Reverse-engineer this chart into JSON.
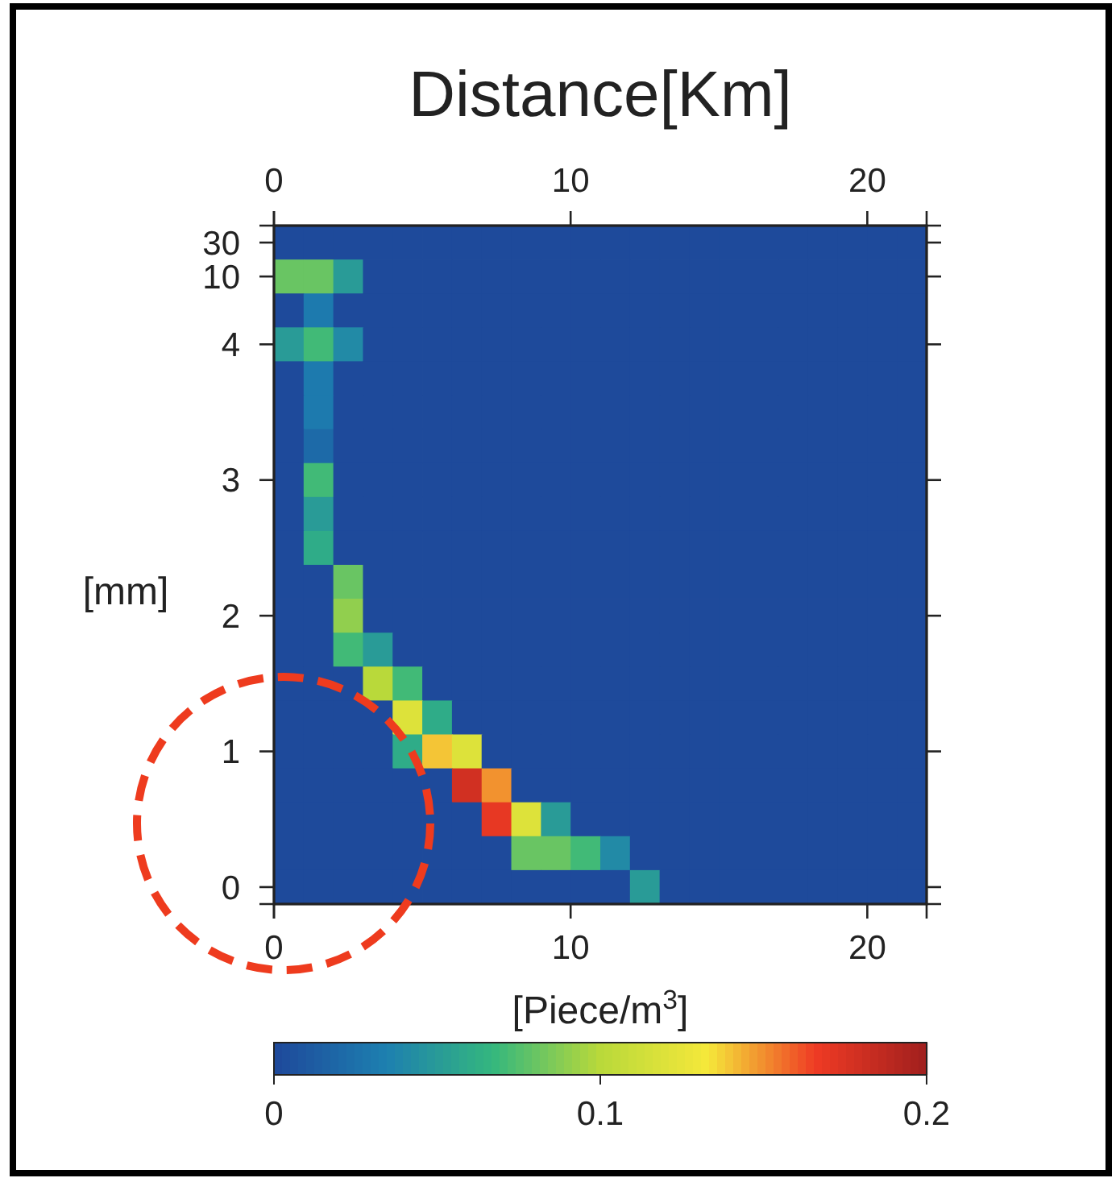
{
  "chart_data": {
    "type": "heatmap",
    "x2label": "Distance[Km]",
    "xlabel": "[Piece/m$^{3}$]",
    "ylabel": "[mm]",
    "x": [
      0.5,
      1.5,
      2.5,
      3.5,
      4.5,
      5.5,
      6.5,
      7.5,
      8.5,
      9.5,
      10.5,
      11.5,
      12.5,
      13.5,
      14.5,
      15.5,
      16.5,
      17.5,
      18.5,
      19.5,
      20.5,
      21.5
    ],
    "y_categories": [
      "30",
      "10",
      null,
      "4",
      null,
      null,
      null,
      "3",
      null,
      null,
      null,
      "2",
      null,
      null,
      null,
      "1",
      null,
      null,
      null,
      "0"
    ],
    "xlim": [
      0,
      22
    ],
    "xticks": [
      0,
      10,
      20
    ],
    "x2lim": [
      0,
      22
    ],
    "x2ticks": [
      0,
      10,
      20
    ],
    "clim": [
      0,
      0.2
    ],
    "cticks": [
      0,
      0.1,
      0.2
    ],
    "cells": [
      [
        0,
        0,
        0,
        0,
        0,
        0,
        0,
        0,
        0,
        0,
        0,
        0,
        0,
        0,
        0,
        0,
        0,
        0,
        0,
        0,
        0,
        0
      ],
      [
        0.08,
        0.08,
        0.05,
        0,
        0,
        0,
        0,
        0,
        0,
        0,
        0,
        0,
        0,
        0,
        0,
        0,
        0,
        0,
        0,
        0,
        0,
        0
      ],
      [
        0,
        0.03,
        0,
        0,
        0,
        0,
        0,
        0,
        0,
        0,
        0,
        0,
        0,
        0,
        0,
        0,
        0,
        0,
        0,
        0,
        0,
        0
      ],
      [
        0.05,
        0.07,
        0.04,
        0,
        0,
        0,
        0,
        0,
        0,
        0,
        0,
        0,
        0,
        0,
        0,
        0,
        0,
        0,
        0,
        0,
        0,
        0
      ],
      [
        0,
        0.03,
        0,
        0,
        0,
        0,
        0,
        0,
        0,
        0,
        0,
        0,
        0,
        0,
        0,
        0,
        0,
        0,
        0,
        0,
        0,
        0
      ],
      [
        0,
        0.03,
        0,
        0,
        0,
        0,
        0,
        0,
        0,
        0,
        0,
        0,
        0,
        0,
        0,
        0,
        0,
        0,
        0,
        0,
        0,
        0
      ],
      [
        0,
        0.02,
        0,
        0,
        0,
        0,
        0,
        0,
        0,
        0,
        0,
        0,
        0,
        0,
        0,
        0,
        0,
        0,
        0,
        0,
        0,
        0
      ],
      [
        0,
        0.07,
        0,
        0,
        0,
        0,
        0,
        0,
        0,
        0,
        0,
        0,
        0,
        0,
        0,
        0,
        0,
        0,
        0,
        0,
        0,
        0
      ],
      [
        0,
        0.05,
        0,
        0,
        0,
        0,
        0,
        0,
        0,
        0,
        0,
        0,
        0,
        0,
        0,
        0,
        0,
        0,
        0,
        0,
        0,
        0
      ],
      [
        0,
        0.06,
        0,
        0,
        0,
        0,
        0,
        0,
        0,
        0,
        0,
        0,
        0,
        0,
        0,
        0,
        0,
        0,
        0,
        0,
        0,
        0
      ],
      [
        0,
        0,
        0.08,
        0,
        0,
        0,
        0,
        0,
        0,
        0,
        0,
        0,
        0,
        0,
        0,
        0,
        0,
        0,
        0,
        0,
        0,
        0
      ],
      [
        0,
        0,
        0.09,
        0,
        0,
        0,
        0,
        0,
        0,
        0,
        0,
        0,
        0,
        0,
        0,
        0,
        0,
        0,
        0,
        0,
        0,
        0
      ],
      [
        0,
        0,
        0.07,
        0.05,
        0,
        0,
        0,
        0,
        0,
        0,
        0,
        0,
        0,
        0,
        0,
        0,
        0,
        0,
        0,
        0,
        0,
        0
      ],
      [
        0,
        0,
        0,
        0.1,
        0.07,
        0,
        0,
        0,
        0,
        0,
        0,
        0,
        0,
        0,
        0,
        0,
        0,
        0,
        0,
        0,
        0,
        0
      ],
      [
        0,
        0,
        0,
        0,
        0.12,
        0.06,
        0,
        0,
        0,
        0,
        0,
        0,
        0,
        0,
        0,
        0,
        0,
        0,
        0,
        0,
        0,
        0
      ],
      [
        0,
        0,
        0,
        0,
        0.06,
        0.14,
        0.12,
        0,
        0,
        0,
        0,
        0,
        0,
        0,
        0,
        0,
        0,
        0,
        0,
        0,
        0,
        0
      ],
      [
        0,
        0,
        0,
        0,
        0,
        0,
        0.18,
        0.15,
        0,
        0,
        0,
        0,
        0,
        0,
        0,
        0,
        0,
        0,
        0,
        0,
        0,
        0
      ],
      [
        0,
        0,
        0,
        0,
        0,
        0,
        0,
        0.17,
        0.12,
        0.05,
        0,
        0,
        0,
        0,
        0,
        0,
        0,
        0,
        0,
        0,
        0,
        0
      ],
      [
        0,
        0,
        0,
        0,
        0,
        0,
        0,
        0,
        0.08,
        0.08,
        0.07,
        0.04,
        0,
        0,
        0,
        0,
        0,
        0,
        0,
        0,
        0,
        0
      ],
      [
        0,
        0,
        0,
        0,
        0,
        0,
        0,
        0,
        0,
        0,
        0,
        0,
        0.05,
        0,
        0,
        0,
        0,
        0,
        0,
        0,
        0,
        0
      ]
    ]
  }
}
